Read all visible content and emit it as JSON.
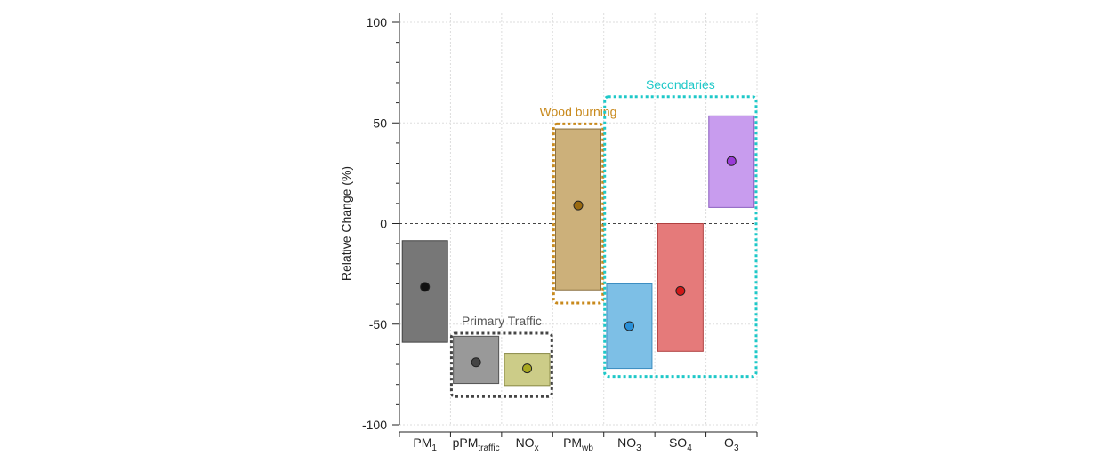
{
  "chart_data": {
    "type": "box",
    "ylabel": "Relative Change (%)",
    "ylim": [
      -100,
      100
    ],
    "yticks": [
      100,
      50,
      0,
      -50,
      -100
    ],
    "grid": true,
    "categories": [
      {
        "base": "PM",
        "sub": "1"
      },
      {
        "base": "pPM",
        "sub": "traffic"
      },
      {
        "base": "NO",
        "sub": "x"
      },
      {
        "base": "PM",
        "sub": "wb"
      },
      {
        "base": "NO",
        "sub": "3"
      },
      {
        "base": "SO",
        "sub": "4"
      },
      {
        "base": "O",
        "sub": "3"
      }
    ],
    "series": [
      {
        "low": -59,
        "high": -8.5,
        "point": -31.5,
        "fill": "#777777",
        "stroke": "#444444",
        "dot": "#111111"
      },
      {
        "low": -79.5,
        "high": -56,
        "point": -69,
        "fill": "#999999",
        "stroke": "#555555",
        "dot": "#444444"
      },
      {
        "low": -80.5,
        "high": -64.5,
        "point": -72,
        "fill": "#cccc88",
        "stroke": "#888844",
        "dot": "#a8a820"
      },
      {
        "low": -33,
        "high": 47,
        "point": 9,
        "fill": "#ccb07a",
        "stroke": "#8a7040",
        "dot": "#9a6a10"
      },
      {
        "low": -72,
        "high": -30,
        "point": -51,
        "fill": "#7dbfe6",
        "stroke": "#3a8cc0",
        "dot": "#2a90d8"
      },
      {
        "low": -63.5,
        "high": 0,
        "point": -33.5,
        "fill": "#e57a7a",
        "stroke": "#b04040",
        "dot": "#d01818"
      },
      {
        "low": 8,
        "high": 53.5,
        "point": 31,
        "fill": "#c89cee",
        "stroke": "#8a5cc0",
        "dot": "#9a3ad8"
      }
    ],
    "groups": [
      {
        "label": "Primary Traffic",
        "from": 1,
        "to": 2,
        "ymin": -86,
        "ymax": -54.5,
        "color": "#444444",
        "labelColor": "#555555"
      },
      {
        "label": "Wood burning",
        "from": 3,
        "to": 3,
        "ymin": -39.5,
        "ymax": 49.5,
        "color": "#c8891c",
        "labelColor": "#c8891c"
      },
      {
        "label": "Secondaries",
        "from": 4,
        "to": 6,
        "ymin": -76,
        "ymax": 63,
        "color": "#1ec8c8",
        "labelColor": "#1ec8c8"
      }
    ]
  }
}
